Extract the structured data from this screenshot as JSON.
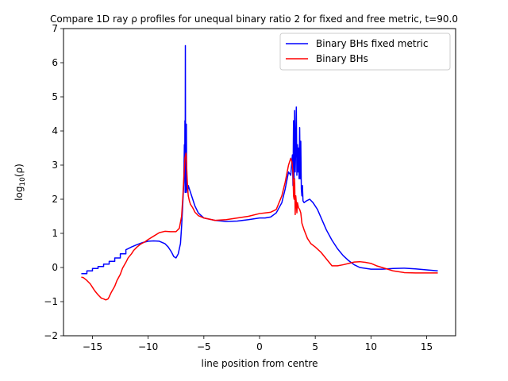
{
  "chart_data": {
    "type": "line",
    "title": "Compare 1D ray ρ profiles for unequal binary ratio 2 for fixed and free metric, t=90.0",
    "xlabel": "line position from centre",
    "ylabel": "log10(ρ)",
    "ylabel_base": "log",
    "ylabel_sub": "10",
    "ylabel_tail": "(ρ)",
    "xlim": [
      -17.6,
      17.6
    ],
    "ylim": [
      -2,
      7
    ],
    "xticks": [
      -15,
      -10,
      -5,
      0,
      5,
      10,
      15
    ],
    "yticks": [
      -2,
      -1,
      0,
      1,
      2,
      3,
      4,
      5,
      6,
      7
    ],
    "grid": false,
    "legend_position": "top-right",
    "series": [
      {
        "name": "Binary BHs fixed metric",
        "color": "#0000ff",
        "x": [
          -16,
          -15.5,
          -15.5,
          -15,
          -15,
          -14.5,
          -14.5,
          -14,
          -14,
          -13.5,
          -13.5,
          -13,
          -13,
          -12.5,
          -12.5,
          -12,
          -12,
          -11.5,
          -11,
          -10.5,
          -10,
          -9.5,
          -9,
          -8.5,
          -8.2,
          -7.9,
          -7.7,
          -7.5,
          -7.3,
          -7.1,
          -7.0,
          -6.9,
          -6.8,
          -6.75,
          -6.72,
          -6.7,
          -6.68,
          -6.66,
          -6.64,
          -6.62,
          -6.6,
          -6.57,
          -6.54,
          -6.5,
          -6.45,
          -6.4,
          -6.3,
          -6.2,
          -6.0,
          -5.8,
          -5.5,
          -5,
          -4,
          -3,
          -2,
          -1,
          0,
          0.5,
          1,
          1.5,
          2,
          2.3,
          2.6,
          2.8,
          2.95,
          3.0,
          3.05,
          3.1,
          3.15,
          3.2,
          3.25,
          3.3,
          3.35,
          3.4,
          3.45,
          3.5,
          3.55,
          3.6,
          3.65,
          3.7,
          3.75,
          3.8,
          3.85,
          3.9,
          4.0,
          4.2,
          4.5,
          4.8,
          5.2,
          5.6,
          6,
          6.5,
          7,
          7.5,
          8,
          8.5,
          9,
          10,
          11,
          12,
          13,
          14,
          15,
          16
        ],
        "y": [
          -0.18,
          -0.18,
          -0.1,
          -0.1,
          -0.03,
          -0.03,
          0.03,
          0.03,
          0.1,
          0.1,
          0.18,
          0.18,
          0.28,
          0.28,
          0.4,
          0.4,
          0.52,
          0.6,
          0.67,
          0.73,
          0.77,
          0.78,
          0.77,
          0.7,
          0.6,
          0.45,
          0.32,
          0.28,
          0.4,
          0.7,
          1.2,
          1.8,
          2.5,
          3.6,
          2.6,
          4.3,
          2.2,
          6.5,
          2.4,
          3.5,
          2.2,
          4.2,
          2.4,
          2.3,
          2.2,
          2.4,
          2.3,
          2.2,
          2.0,
          1.8,
          1.6,
          1.45,
          1.38,
          1.35,
          1.36,
          1.4,
          1.45,
          1.45,
          1.48,
          1.6,
          1.9,
          2.3,
          2.8,
          2.7,
          3.3,
          2.4,
          4.3,
          2.6,
          4.6,
          2.8,
          3.6,
          4.7,
          2.7,
          3.6,
          2.8,
          3.5,
          2.6,
          4.1,
          2.6,
          3.7,
          2.3,
          2.1,
          2.4,
          1.95,
          1.9,
          1.95,
          2.0,
          1.9,
          1.7,
          1.4,
          1.1,
          0.8,
          0.55,
          0.35,
          0.2,
          0.08,
          0.0,
          -0.05,
          -0.05,
          -0.03,
          -0.02,
          -0.04,
          -0.07,
          -0.1
        ]
      },
      {
        "name": "Binary BHs",
        "color": "#ff0000",
        "x": [
          -16,
          -15.8,
          -15.5,
          -15.2,
          -15,
          -14.8,
          -14.5,
          -14.2,
          -14,
          -13.8,
          -13.6,
          -13.5,
          -13.3,
          -13,
          -12.8,
          -12.5,
          -12.3,
          -12,
          -11.8,
          -11.5,
          -11.3,
          -11,
          -10.7,
          -10.3,
          -10,
          -9.5,
          -9,
          -8.5,
          -8,
          -7.5,
          -7.2,
          -7.0,
          -6.9,
          -6.8,
          -6.7,
          -6.6,
          -6.55,
          -6.5,
          -6.45,
          -6.4,
          -6.3,
          -6.2,
          -6.0,
          -5.8,
          -5.5,
          -5,
          -4,
          -3,
          -2,
          -1,
          0,
          0.5,
          1,
          1.5,
          2,
          2.3,
          2.6,
          2.8,
          2.9,
          3.0,
          3.05,
          3.1,
          3.15,
          3.2,
          3.25,
          3.3,
          3.35,
          3.4,
          3.5,
          3.6,
          3.7,
          3.8,
          4.0,
          4.3,
          4.6,
          5.0,
          5.5,
          6.0,
          6.5,
          7.0,
          7.5,
          8,
          8.5,
          9,
          9.5,
          10,
          10.5,
          11,
          11.5,
          12,
          13,
          14,
          15,
          16
        ],
        "y": [
          -0.28,
          -0.3,
          -0.38,
          -0.48,
          -0.58,
          -0.68,
          -0.8,
          -0.9,
          -0.92,
          -0.95,
          -0.92,
          -0.86,
          -0.72,
          -0.55,
          -0.38,
          -0.2,
          -0.02,
          0.15,
          0.28,
          0.4,
          0.5,
          0.6,
          0.68,
          0.75,
          0.82,
          0.92,
          1.02,
          1.06,
          1.05,
          1.05,
          1.15,
          1.5,
          2.0,
          2.6,
          3.2,
          3.35,
          3.0,
          2.6,
          2.3,
          2.1,
          1.95,
          1.85,
          1.75,
          1.62,
          1.52,
          1.45,
          1.38,
          1.4,
          1.45,
          1.5,
          1.58,
          1.6,
          1.62,
          1.7,
          2.1,
          2.5,
          3.0,
          3.2,
          3.1,
          2.8,
          2.1,
          2.0,
          2.6,
          1.55,
          2.1,
          1.9,
          1.6,
          1.9,
          1.75,
          1.7,
          1.6,
          1.3,
          1.1,
          0.85,
          0.7,
          0.6,
          0.45,
          0.25,
          0.05,
          0.05,
          0.08,
          0.12,
          0.16,
          0.17,
          0.15,
          0.12,
          0.05,
          0.0,
          -0.05,
          -0.1,
          -0.15,
          -0.16,
          -0.16,
          -0.16
        ]
      }
    ]
  }
}
